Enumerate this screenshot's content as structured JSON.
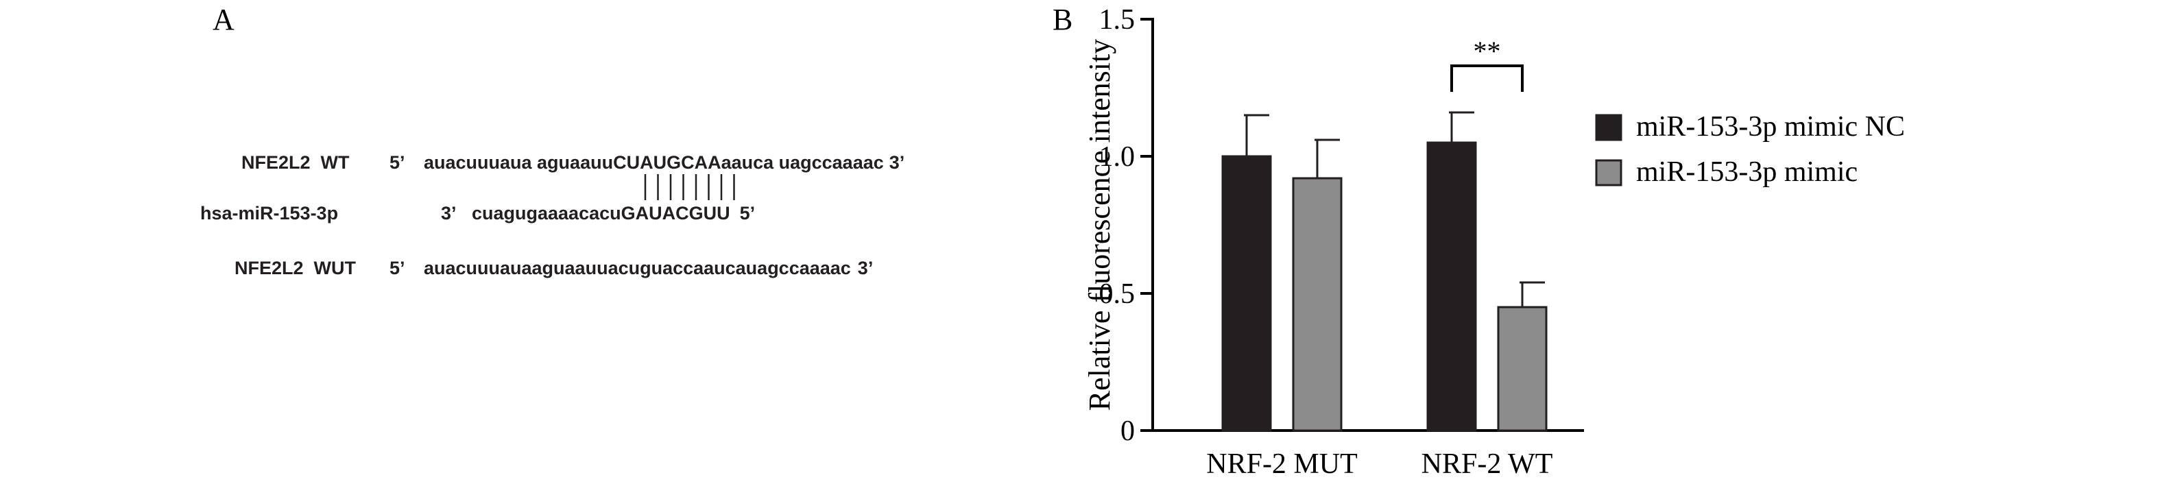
{
  "panels": {
    "a_label": "A",
    "b_label": "B"
  },
  "sequence_panel": {
    "rows": {
      "wt": {
        "name": "NFE2L2  WT",
        "prime5": "5’",
        "part1": "auacuuuaua aguaauu",
        "seed": "CUAUGCAA",
        "part2": "aauca uagccaaaac",
        "prime3": "3’"
      },
      "mir": {
        "name": "hsa-miR-153-3p",
        "prime3": "3’",
        "part1": "cuagugaaaacacu",
        "seed": "GAUACGUU",
        "prime5": "5’"
      },
      "mut": {
        "name": "NFE2L2  WUT",
        "prime5": "5’",
        "sequence": "auacuuuauaaguaauuacuguaccaaucauagccaaaac",
        "prime3": "3’"
      }
    },
    "pairing_lines": 8
  },
  "chart_data": {
    "type": "bar",
    "ylabel": "Relative fluorescence intensity",
    "ylim": [
      0,
      1.5
    ],
    "yticks": [
      0,
      0.5,
      1.0,
      1.5
    ],
    "ytick_labels": [
      "0",
      "0.5",
      "1.0",
      "1.5"
    ],
    "categories": [
      "NRF-2 MUT",
      "NRF-2 WT"
    ],
    "series": [
      {
        "name": "miR-153-3p mimic NC",
        "color": "#231f20",
        "values": [
          1.0,
          1.05
        ],
        "errors": [
          0.15,
          0.11
        ]
      },
      {
        "name": "miR-153-3p mimic",
        "color": "#8c8c8c",
        "values": [
          0.92,
          0.45
        ],
        "errors": [
          0.14,
          0.09
        ]
      }
    ],
    "significance": {
      "category": "NRF-2 WT",
      "label": "**"
    },
    "legend_position": "right"
  }
}
